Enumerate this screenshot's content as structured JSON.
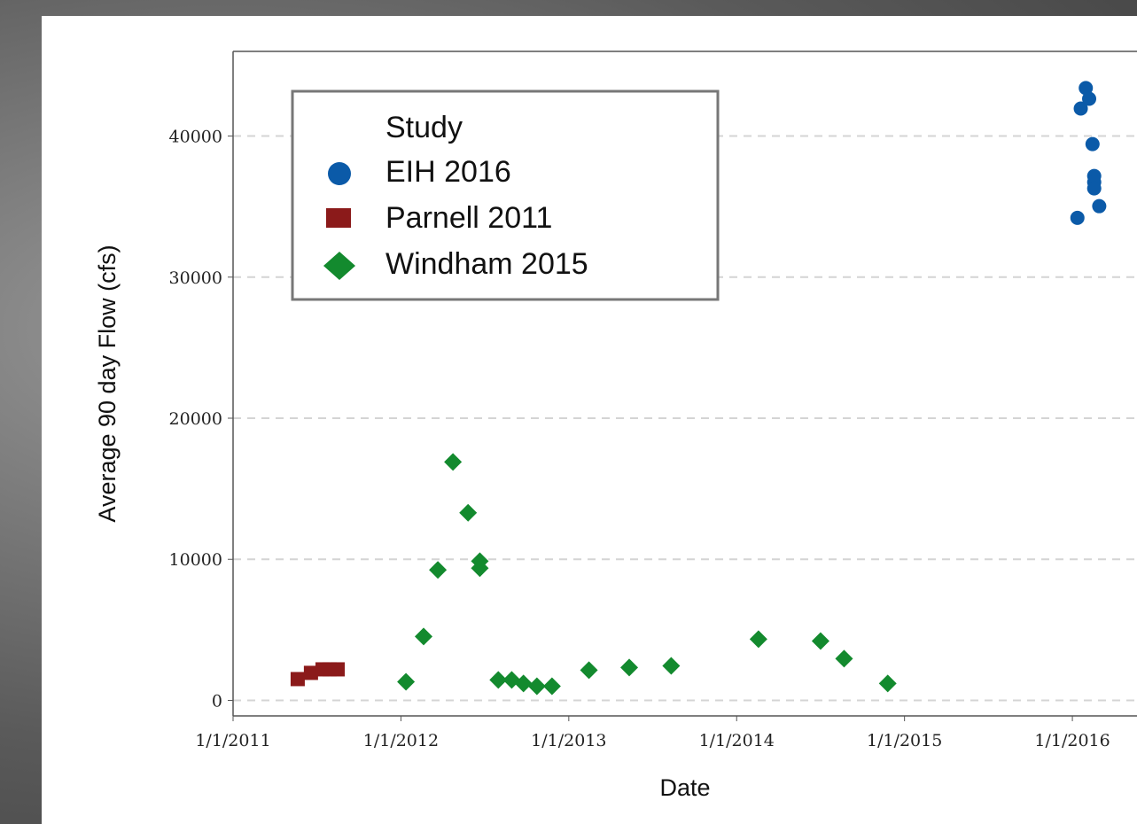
{
  "chart_data": {
    "type": "scatter",
    "x_label": "Date",
    "y_label": "Average 90 day Flow (cfs)",
    "legend_title": "Study",
    "legend": "top-left",
    "grid": true,
    "xlim": [
      2011.0,
      2016.385
    ],
    "ylim": [
      -1100,
      46000
    ],
    "xticks": [
      {
        "value": 2011,
        "label": "1/1/2011"
      },
      {
        "value": 2012,
        "label": "1/1/2012"
      },
      {
        "value": 2013,
        "label": "1/1/2013"
      },
      {
        "value": 2014,
        "label": "1/1/2014"
      },
      {
        "value": 2015,
        "label": "1/1/2015"
      },
      {
        "value": 2016,
        "label": "1/1/2016"
      }
    ],
    "yticks": [
      0,
      10000,
      20000,
      30000,
      40000
    ],
    "series": [
      {
        "name": "EIH 2016",
        "color": "#0b5aa8",
        "marker": "circle",
        "x": [
          2016.03,
          2016.05,
          2016.08,
          2016.1,
          2016.12,
          2016.13,
          2016.13,
          2016.13,
          2016.16
        ],
        "values": [
          34200,
          41950,
          43400,
          42640,
          39430,
          37170,
          36730,
          36290,
          35030
        ]
      },
      {
        "name": "Parnell 2011",
        "color": "#8b1a1a",
        "marker": "square",
        "x": [
          2011.385,
          2011.464,
          2011.533,
          2011.575,
          2011.623
        ],
        "values": [
          1510,
          1950,
          2200,
          2200,
          2200
        ]
      },
      {
        "name": "Windham 2015",
        "color": "#138a2e",
        "marker": "diamond",
        "x": [
          2012.03,
          2012.135,
          2012.22,
          2012.31,
          2012.4,
          2012.47,
          2012.47,
          2012.58,
          2012.66,
          2012.73,
          2012.81,
          2012.9,
          2013.12,
          2013.36,
          2013.61,
          2014.13,
          2014.5,
          2014.64,
          2014.9
        ],
        "values": [
          1320,
          4530,
          9250,
          16900,
          13300,
          9870,
          9370,
          1450,
          1450,
          1200,
          1000,
          1000,
          2140,
          2330,
          2450,
          4340,
          4210,
          2960,
          1200
        ]
      }
    ]
  }
}
